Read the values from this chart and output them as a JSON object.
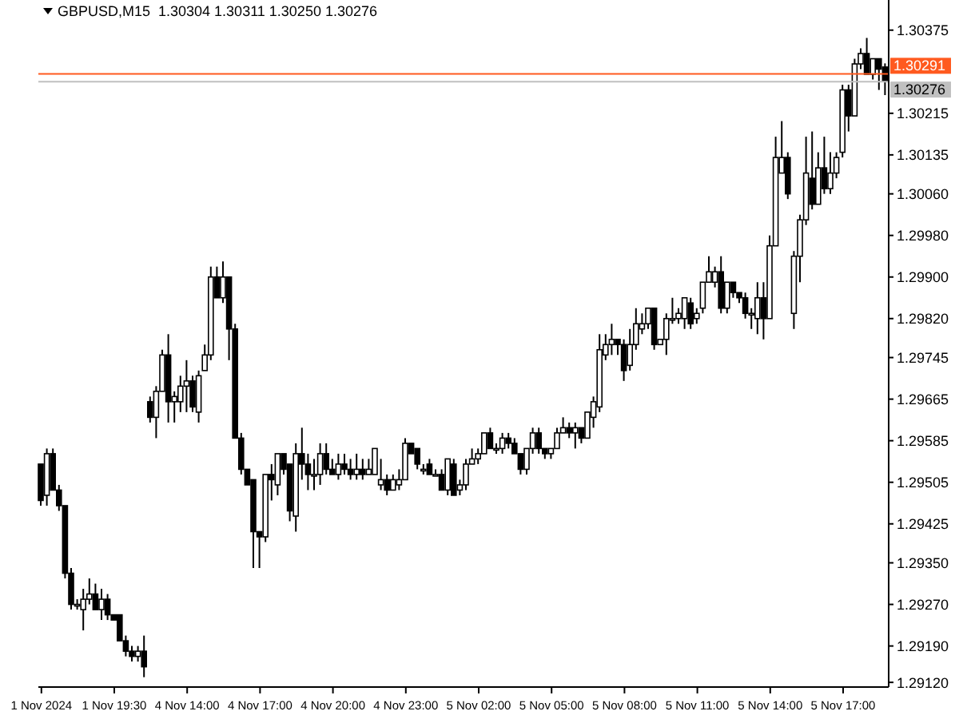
{
  "chart_data": {
    "type": "candlestick",
    "title": "GBPUSD,M15  1.30304 1.30311 1.30250 1.30276",
    "categories": [
      "1 Nov 2024",
      null,
      null,
      null,
      null,
      null,
      null,
      null,
      null,
      null,
      null,
      null,
      "1 Nov 19:30",
      null,
      null,
      null,
      null,
      null,
      null,
      null,
      null,
      null,
      null,
      null,
      "4 Nov 14:00",
      null,
      null,
      null,
      null,
      null,
      null,
      null,
      null,
      null,
      null,
      null,
      "4 Nov 17:00",
      null,
      null,
      null,
      null,
      null,
      null,
      null,
      null,
      null,
      null,
      null,
      "4 Nov 20:00",
      null,
      null,
      null,
      null,
      null,
      null,
      null,
      null,
      null,
      null,
      null,
      "4 Nov 23:00",
      null,
      null,
      null,
      null,
      null,
      null,
      null,
      null,
      null,
      null,
      null,
      "5 Nov 02:00",
      null,
      null,
      null,
      null,
      null,
      null,
      null,
      null,
      null,
      null,
      null,
      "5 Nov 05:00",
      null,
      null,
      null,
      null,
      null,
      null,
      null,
      null,
      null,
      null,
      null,
      "5 Nov 08:00",
      null,
      null,
      null,
      null,
      null,
      null,
      null,
      null,
      null,
      null,
      null,
      "5 Nov 11:00",
      null,
      null,
      null,
      null,
      null,
      null,
      null,
      null,
      null,
      null,
      null,
      "5 Nov 14:00",
      null,
      null,
      null,
      null,
      null,
      null,
      null,
      null,
      null,
      null,
      null,
      "5 Nov 17:00",
      null,
      null,
      null,
      null,
      null,
      null,
      null
    ],
    "ohlc": [
      [
        1.2954,
        1.2954,
        1.2946,
        1.2947
      ],
      [
        1.2948,
        1.2957,
        1.2946,
        1.2956
      ],
      [
        1.2956,
        1.2957,
        1.2949,
        1.2949
      ],
      [
        1.2949,
        1.295,
        1.2945,
        1.2946
      ],
      [
        1.2946,
        1.2946,
        1.2932,
        1.2933
      ],
      [
        1.2933,
        1.2934,
        1.2926,
        1.2927
      ],
      [
        1.2927,
        1.2928,
        1.2926,
        1.2927
      ],
      [
        1.2926,
        1.293,
        1.2922,
        1.2928
      ],
      [
        1.2928,
        1.2932,
        1.2927,
        1.2929
      ],
      [
        1.2929,
        1.2931,
        1.2926,
        1.2926
      ],
      [
        1.2926,
        1.293,
        1.2924,
        1.2928
      ],
      [
        1.2928,
        1.2929,
        1.2924,
        1.2925
      ],
      [
        1.2925,
        1.2925,
        1.2924,
        1.2924
      ],
      [
        1.2925,
        1.2925,
        1.292,
        1.292
      ],
      [
        1.292,
        1.2921,
        1.2917,
        1.2918
      ],
      [
        1.2918,
        1.2919,
        1.2916,
        1.2917
      ],
      [
        1.2917,
        1.2919,
        1.2916,
        1.2918
      ],
      [
        1.2918,
        1.2921,
        1.2913,
        1.2915
      ],
      [
        1.2966,
        1.2967,
        1.2962,
        1.2963
      ],
      [
        1.2963,
        1.2969,
        1.2959,
        1.2968
      ],
      [
        1.2968,
        1.2976,
        1.2968,
        1.2975
      ],
      [
        1.2975,
        1.2979,
        1.2962,
        1.2966
      ],
      [
        1.2966,
        1.2968,
        1.2962,
        1.2967
      ],
      [
        1.2966,
        1.2971,
        1.2964,
        1.2969
      ],
      [
        1.2969,
        1.2974,
        1.2964,
        1.297
      ],
      [
        1.297,
        1.2971,
        1.2964,
        1.2965
      ],
      [
        1.2964,
        1.2972,
        1.2962,
        1.2971
      ],
      [
        1.2972,
        1.2977,
        1.2972,
        1.2975
      ],
      [
        1.2975,
        1.2992,
        1.2974,
        1.299
      ],
      [
        1.299,
        1.2992,
        1.2986,
        1.2986
      ],
      [
        1.2986,
        1.2993,
        1.2985,
        1.299
      ],
      [
        1.299,
        1.299,
        1.2974,
        1.298
      ],
      [
        1.298,
        1.2981,
        1.2959,
        1.2959
      ],
      [
        1.2959,
        1.296,
        1.2952,
        1.2953
      ],
      [
        1.2953,
        1.2953,
        1.295,
        1.295
      ],
      [
        1.2951,
        1.2951,
        1.2934,
        1.2941
      ],
      [
        1.2941,
        1.2941,
        1.2934,
        1.294
      ],
      [
        1.294,
        1.2952,
        1.2939,
        1.2952
      ],
      [
        1.2952,
        1.2954,
        1.2947,
        1.2951
      ],
      [
        1.295,
        1.2956,
        1.2948,
        1.2956
      ],
      [
        1.2956,
        1.2956,
        1.2952,
        1.2953
      ],
      [
        1.2954,
        1.2954,
        1.2943,
        1.2945
      ],
      [
        1.2944,
        1.2958,
        1.2941,
        1.2956
      ],
      [
        1.2956,
        1.2961,
        1.2951,
        1.2954
      ],
      [
        1.2954,
        1.2956,
        1.2949,
        1.2952
      ],
      [
        1.2952,
        1.2955,
        1.2949,
        1.2952
      ],
      [
        1.2952,
        1.2958,
        1.295,
        1.2956
      ],
      [
        1.2956,
        1.2958,
        1.2952,
        1.2953
      ],
      [
        1.2953,
        1.2955,
        1.2952,
        1.2952
      ],
      [
        1.2952,
        1.2956,
        1.2951,
        1.2954
      ],
      [
        1.2954,
        1.2956,
        1.2952,
        1.2953
      ],
      [
        1.2953,
        1.2955,
        1.2951,
        1.2952
      ],
      [
        1.2952,
        1.2956,
        1.2951,
        1.2953
      ],
      [
        1.2953,
        1.2955,
        1.2951,
        1.2952
      ],
      [
        1.2952,
        1.2955,
        1.2952,
        1.2953
      ],
      [
        1.2952,
        1.2957,
        1.2952,
        1.2957
      ],
      [
        1.295,
        1.2955,
        1.2949,
        1.2951
      ],
      [
        1.2951,
        1.2952,
        1.2948,
        1.2949
      ],
      [
        1.2949,
        1.2952,
        1.2949,
        1.2951
      ],
      [
        1.295,
        1.2953,
        1.2949,
        1.2951
      ],
      [
        1.2951,
        1.2959,
        1.2951,
        1.2958
      ],
      [
        1.2958,
        1.2958,
        1.2956,
        1.2956
      ],
      [
        1.2957,
        1.2957,
        1.2953,
        1.2954
      ],
      [
        1.2953,
        1.2954,
        1.2952,
        1.2953
      ],
      [
        1.2954,
        1.2955,
        1.2952,
        1.2952
      ],
      [
        1.2952,
        1.2953,
        1.2952,
        1.2952
      ],
      [
        1.2952,
        1.2953,
        1.2949,
        1.2949
      ],
      [
        1.2949,
        1.2955,
        1.2948,
        1.2955
      ],
      [
        1.2954,
        1.2955,
        1.2948,
        1.2948
      ],
      [
        1.2949,
        1.2951,
        1.2948,
        1.295
      ],
      [
        1.295,
        1.2955,
        1.2949,
        1.2954
      ],
      [
        1.2954,
        1.2957,
        1.2954,
        1.2955
      ],
      [
        1.2955,
        1.2957,
        1.2954,
        1.2956
      ],
      [
        1.2956,
        1.296,
        1.2956,
        1.296
      ],
      [
        1.296,
        1.2961,
        1.2957,
        1.2957
      ],
      [
        1.2957,
        1.2958,
        1.2956,
        1.2957
      ],
      [
        1.2957,
        1.296,
        1.2956,
        1.2959
      ],
      [
        1.2959,
        1.296,
        1.2957,
        1.2958
      ],
      [
        1.2958,
        1.2959,
        1.2956,
        1.2956
      ],
      [
        1.2956,
        1.2956,
        1.2952,
        1.2953
      ],
      [
        1.2953,
        1.2957,
        1.2952,
        1.2957
      ],
      [
        1.2957,
        1.2961,
        1.2956,
        1.296
      ],
      [
        1.296,
        1.2961,
        1.2956,
        1.2957
      ],
      [
        1.2957,
        1.2957,
        1.2955,
        1.2956
      ],
      [
        1.2956,
        1.2957,
        1.2955,
        1.2957
      ],
      [
        1.2957,
        1.2961,
        1.2957,
        1.296
      ],
      [
        1.296,
        1.2963,
        1.296,
        1.2961
      ],
      [
        1.2961,
        1.2962,
        1.2959,
        1.296
      ],
      [
        1.296,
        1.2962,
        1.2957,
        1.2961
      ],
      [
        1.2961,
        1.2961,
        1.2958,
        1.2959
      ],
      [
        1.2959,
        1.2964,
        1.2959,
        1.2964
      ],
      [
        1.2963,
        1.2967,
        1.2961,
        1.2966
      ],
      [
        1.2965,
        1.2979,
        1.2964,
        1.2976
      ],
      [
        1.2975,
        1.2979,
        1.2974,
        1.2977
      ],
      [
        1.2977,
        1.2981,
        1.2975,
        1.2978
      ],
      [
        1.2978,
        1.2978,
        1.2975,
        1.2977
      ],
      [
        1.2977,
        1.2978,
        1.297,
        1.2972
      ],
      [
        1.2973,
        1.298,
        1.2972,
        1.2977
      ],
      [
        1.2977,
        1.2984,
        1.2976,
        1.2981
      ],
      [
        1.298,
        1.2983,
        1.2979,
        1.2981
      ],
      [
        1.2981,
        1.2984,
        1.298,
        1.2984
      ],
      [
        1.2984,
        1.2984,
        1.2976,
        1.2977
      ],
      [
        1.2977,
        1.2978,
        1.2977,
        1.2978
      ],
      [
        1.2978,
        1.2983,
        1.2975,
        1.2982
      ],
      [
        1.2982,
        1.2986,
        1.2981,
        1.2982
      ],
      [
        1.2982,
        1.2984,
        1.2981,
        1.2983
      ],
      [
        1.2982,
        1.2986,
        1.298,
        1.2986
      ],
      [
        1.2985,
        1.2986,
        1.298,
        1.2981
      ],
      [
        1.2982,
        1.2984,
        1.2981,
        1.2983
      ],
      [
        1.2984,
        1.2989,
        1.2983,
        1.2989
      ],
      [
        1.2989,
        1.2994,
        1.2989,
        1.2991
      ],
      [
        1.2989,
        1.2992,
        1.2988,
        1.2991
      ],
      [
        1.2991,
        1.2994,
        1.2983,
        1.2984
      ],
      [
        1.2984,
        1.2989,
        1.2983,
        1.2989
      ],
      [
        1.2989,
        1.2989,
        1.2986,
        1.2987
      ],
      [
        1.2987,
        1.2987,
        1.2985,
        1.2986
      ],
      [
        1.2986,
        1.2987,
        1.2982,
        1.2983
      ],
      [
        1.2983,
        1.2984,
        1.298,
        1.2983
      ],
      [
        1.2982,
        1.2989,
        1.2979,
        1.2986
      ],
      [
        1.2986,
        1.2989,
        1.2978,
        1.2982
      ],
      [
        1.2982,
        1.2998,
        1.2982,
        1.2996
      ],
      [
        1.2996,
        1.3017,
        1.2996,
        1.3013
      ],
      [
        1.301,
        1.302,
        1.301,
        1.3013
      ],
      [
        1.3013,
        1.3014,
        1.3005,
        1.3006
      ],
      [
        1.2983,
        1.2995,
        1.298,
        1.2994
      ],
      [
        1.2994,
        1.3002,
        1.2989,
        1.3001
      ],
      [
        1.3001,
        1.3017,
        1.3,
        1.301
      ],
      [
        1.3009,
        1.3018,
        1.3003,
        1.3004
      ],
      [
        1.3004,
        1.3014,
        1.3004,
        1.3011
      ],
      [
        1.3011,
        1.3017,
        1.3006,
        1.3007
      ],
      [
        1.3007,
        1.3014,
        1.3006,
        1.301
      ],
      [
        1.301,
        1.3014,
        1.3009,
        1.3013
      ],
      [
        1.3014,
        1.3027,
        1.3013,
        1.3026
      ],
      [
        1.3026,
        1.3027,
        1.3018,
        1.3021
      ],
      [
        1.3021,
        1.3032,
        1.3021,
        1.3031
      ],
      [
        1.3031,
        1.3034,
        1.303,
        1.3033
      ],
      [
        1.3033,
        1.3036,
        1.3029,
        1.3029
      ],
      [
        1.3029,
        1.3032,
        1.3028,
        1.3032
      ],
      [
        1.3032,
        1.3032,
        1.3026,
        1.303
      ],
      [
        1.30304,
        1.30311,
        1.3025,
        1.30276
      ]
    ],
    "ylim": [
      1.29111,
      1.30433
    ],
    "yticks": [
      1.30375,
      1.30215,
      1.30135,
      {
        "value": 1.3006,
        "label": "1.30060"
      },
      {
        "value": 1.2998,
        "label": "1.29980"
      },
      {
        "value": 1.299,
        "label": "1.29900"
      },
      {
        "value": 1.2982,
        "label": "1.29820"
      },
      1.29745,
      1.29665,
      1.29585,
      1.29505,
      1.29425,
      {
        "value": 1.2935,
        "label": "1.29350"
      },
      {
        "value": 1.2927,
        "label": "1.29270"
      },
      {
        "value": 1.2919,
        "label": "1.29190"
      },
      {
        "value": 1.2912,
        "label": "1.29120"
      }
    ],
    "ref_lines": [
      {
        "axis": "y",
        "value": 1.30291,
        "label": "1.30291",
        "color": "#ff5a1f"
      },
      {
        "axis": "y",
        "value": 1.30276,
        "label": "1.30276",
        "color": "#c0c0c0"
      }
    ]
  }
}
